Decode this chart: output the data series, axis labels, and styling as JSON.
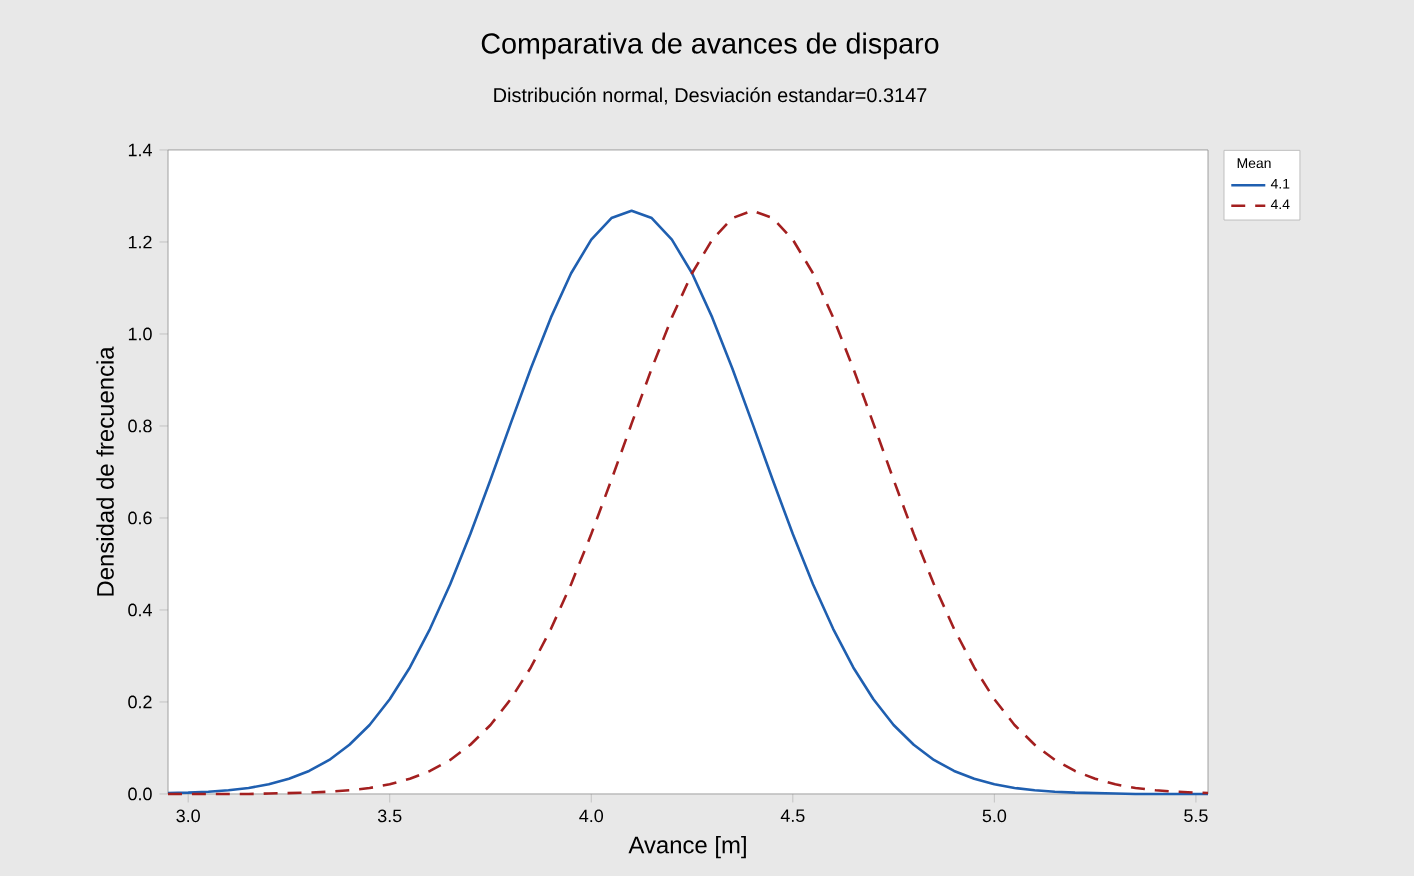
{
  "chart_data": {
    "type": "line",
    "title": "Comparativa de avances de disparo",
    "subtitle": "Distribución normal, Desviación estandar=0.3147",
    "xlabel": "Avance [m]",
    "ylabel": "Densidad de frecuencia",
    "legend_title": "Mean",
    "legend": "top right",
    "grid": false,
    "marker": "none",
    "x": [
      2.95,
      3.0,
      3.05,
      3.1,
      3.15,
      3.2,
      3.25,
      3.3,
      3.35,
      3.4,
      3.45,
      3.5,
      3.55,
      3.6,
      3.65,
      3.7,
      3.75,
      3.8,
      3.85,
      3.9,
      3.95,
      4.0,
      4.05,
      4.1,
      4.15,
      4.2,
      4.25,
      4.3,
      4.35,
      4.4,
      4.45,
      4.5,
      4.55,
      4.6,
      4.65,
      4.7,
      4.75,
      4.8,
      4.85,
      4.9,
      4.95,
      5.0,
      5.05,
      5.1,
      5.15,
      5.2,
      5.25,
      5.3,
      5.35,
      5.4,
      5.45,
      5.5,
      5.53
    ],
    "series": [
      {
        "name": "4.1",
        "color": "#1f5fb0",
        "line_style": "solid",
        "values": [
          0.002,
          0.003,
          0.005,
          0.008,
          0.013,
          0.021,
          0.033,
          0.05,
          0.074,
          0.107,
          0.15,
          0.206,
          0.275,
          0.359,
          0.456,
          0.565,
          0.683,
          0.805,
          0.925,
          1.036,
          1.132,
          1.205,
          1.252,
          1.268,
          1.252,
          1.205,
          1.132,
          1.036,
          0.925,
          0.805,
          0.683,
          0.565,
          0.456,
          0.359,
          0.275,
          0.206,
          0.15,
          0.107,
          0.074,
          0.05,
          0.033,
          0.021,
          0.013,
          0.008,
          0.005,
          0.003,
          0.002,
          0.001,
          0,
          0,
          0,
          0,
          0
        ]
      },
      {
        "name": "4.4",
        "color": "#a31f1f",
        "line_style": "dashed",
        "values": [
          0,
          0,
          0,
          0,
          0,
          0.001,
          0.002,
          0.003,
          0.005,
          0.008,
          0.013,
          0.021,
          0.033,
          0.05,
          0.074,
          0.107,
          0.15,
          0.206,
          0.275,
          0.359,
          0.456,
          0.565,
          0.683,
          0.805,
          0.925,
          1.036,
          1.132,
          1.205,
          1.252,
          1.268,
          1.252,
          1.205,
          1.132,
          1.036,
          0.925,
          0.805,
          0.683,
          0.565,
          0.456,
          0.359,
          0.275,
          0.206,
          0.15,
          0.107,
          0.074,
          0.05,
          0.033,
          0.021,
          0.013,
          0.008,
          0.005,
          0.003,
          0.002
        ]
      }
    ],
    "xlim": [
      2.95,
      5.53
    ],
    "ylim": [
      0,
      1.4
    ],
    "xticks": [
      {
        "value": 3.0,
        "label": "3.0"
      },
      3.5,
      {
        "value": 4.0,
        "label": "4.0"
      },
      4.5,
      {
        "value": 5.0,
        "label": "5.0"
      },
      5.5
    ],
    "yticks": [
      {
        "value": 0,
        "label": "0.0"
      },
      0.2,
      0.4,
      0.6,
      0.8,
      {
        "value": 1.0,
        "label": "1.0"
      },
      1.2,
      1.4
    ]
  }
}
